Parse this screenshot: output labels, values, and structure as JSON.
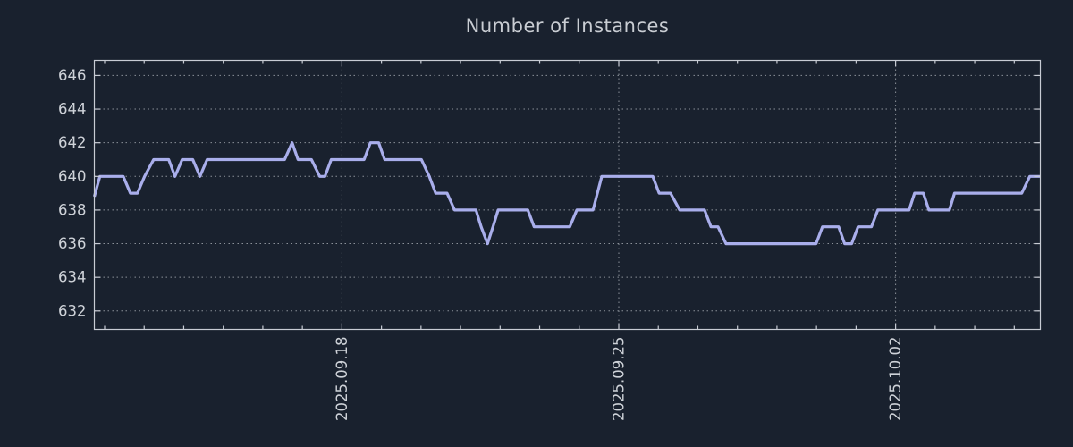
{
  "style": {
    "background": "#19212e",
    "axis_color": "#c8ccd4",
    "grid_color": "#8b9199",
    "title_color": "#c9cdd3",
    "tick_label_color": "#ced2d8",
    "line_color": "#a9aeeb"
  },
  "chart_data": {
    "type": "line",
    "title": "Number of Instances",
    "legend": "none",
    "grid": {
      "style": "dotted",
      "horizontal_at_y_ticks": true,
      "vertical_at_x_major_ticks": true
    },
    "x_axis": {
      "kind": "time",
      "reference_date": "2025-09-18",
      "unit": "days relative to reference_date",
      "range": [
        -6.26,
        17.66
      ],
      "major_ticks": [
        {
          "pos": 0,
          "label": "2025.09.18"
        },
        {
          "pos": 7,
          "label": "2025.09.25"
        },
        {
          "pos": 14,
          "label": "2025.10.02"
        }
      ],
      "minor_tick_every": 1,
      "label_rotation_deg": -90
    },
    "y_axis": {
      "range": [
        630.9,
        646.9
      ],
      "tick_values": [
        632,
        634,
        636,
        638,
        640,
        642,
        644,
        646
      ]
    },
    "series": [
      {
        "name": "instances",
        "color": "#a9aeeb",
        "width": 3.2,
        "points": [
          [
            -6.26,
            638.8
          ],
          [
            -6.12,
            640
          ],
          [
            -5.53,
            640
          ],
          [
            -5.35,
            639
          ],
          [
            -5.17,
            639
          ],
          [
            -4.99,
            640
          ],
          [
            -4.76,
            641
          ],
          [
            -4.38,
            641
          ],
          [
            -4.22,
            640
          ],
          [
            -4.04,
            641
          ],
          [
            -3.77,
            641
          ],
          [
            -3.59,
            640
          ],
          [
            -3.41,
            641
          ],
          [
            -1.45,
            641
          ],
          [
            -1.26,
            642
          ],
          [
            -1.11,
            641
          ],
          [
            -0.77,
            641
          ],
          [
            -0.56,
            640
          ],
          [
            -0.43,
            640
          ],
          [
            -0.27,
            641
          ],
          [
            0.56,
            641
          ],
          [
            0.72,
            642
          ],
          [
            0.93,
            642
          ],
          [
            1.08,
            641
          ],
          [
            2.01,
            641
          ],
          [
            2.21,
            640
          ],
          [
            2.37,
            639
          ],
          [
            2.66,
            639
          ],
          [
            2.85,
            638
          ],
          [
            3.39,
            638
          ],
          [
            3.52,
            637
          ],
          [
            3.68,
            636
          ],
          [
            3.82,
            637
          ],
          [
            3.95,
            638
          ],
          [
            4.7,
            638
          ],
          [
            4.86,
            637
          ],
          [
            5.76,
            637
          ],
          [
            5.94,
            638
          ],
          [
            6.35,
            638
          ],
          [
            6.46,
            639
          ],
          [
            6.57,
            640
          ],
          [
            7.86,
            640
          ],
          [
            8.02,
            639
          ],
          [
            8.31,
            639
          ],
          [
            8.54,
            638
          ],
          [
            9.17,
            638
          ],
          [
            9.33,
            637
          ],
          [
            9.51,
            637
          ],
          [
            9.71,
            636
          ],
          [
            11.99,
            636
          ],
          [
            12.15,
            637
          ],
          [
            12.56,
            637
          ],
          [
            12.71,
            636
          ],
          [
            12.89,
            636
          ],
          [
            13.05,
            637
          ],
          [
            13.39,
            637
          ],
          [
            13.55,
            638
          ],
          [
            14.34,
            638
          ],
          [
            14.48,
            639
          ],
          [
            14.7,
            639
          ],
          [
            14.84,
            638
          ],
          [
            15.36,
            638
          ],
          [
            15.49,
            639
          ],
          [
            17.19,
            639
          ],
          [
            17.39,
            640
          ],
          [
            17.66,
            640
          ]
        ]
      }
    ]
  }
}
